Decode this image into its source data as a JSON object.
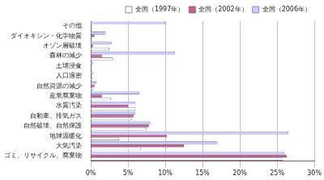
{
  "chart_data": {
    "type": "bar",
    "orientation": "horizontal",
    "categories": [
      "その他",
      "ダイオキシン・化学物質",
      "オゾン層破壊",
      "森林の減少",
      "土壌浸食",
      "人口過密",
      "自然資源の減少",
      "産業廃棄物",
      "水質汚染",
      "自動車、排気ガス",
      "自然破壊、自然保護",
      "地球温暖化",
      "大気汚染",
      "ゴミ、リサイクル、廃棄物"
    ],
    "series": [
      {
        "name": "全国（1997年）",
        "color": "#ffffff",
        "values": [
          0,
          0,
          2.5,
          3,
          0,
          0.2,
          0.3,
          2.7,
          6,
          5.5,
          7.5,
          3.8,
          6.7,
          25.8
        ]
      },
      {
        "name": "全国（2002年）",
        "color": "#cc5c99",
        "values": [
          0,
          0.5,
          0.3,
          1.5,
          0,
          0,
          0.5,
          1.5,
          5,
          5.8,
          7.8,
          10.2,
          12.5,
          26.3
        ]
      },
      {
        "name": "全国（2006年）",
        "color": "#ccccff",
        "values": [
          10,
          2,
          2.8,
          11.3,
          0.3,
          0.3,
          0.8,
          6.5,
          6,
          6,
          8,
          26.5,
          17,
          26
        ]
      }
    ],
    "xlim": [
      0,
      30
    ],
    "xticks": [
      {
        "value": 0,
        "label": "0%"
      },
      {
        "value": 5,
        "label": "5%"
      },
      {
        "value": 10,
        "label": "10%"
      },
      {
        "value": 15,
        "label": "15%"
      },
      {
        "value": 20,
        "label": "20%"
      },
      {
        "value": 25,
        "label": "25%"
      },
      {
        "value": 30,
        "label": "30%"
      }
    ],
    "grid": true,
    "legend": "top-right"
  }
}
